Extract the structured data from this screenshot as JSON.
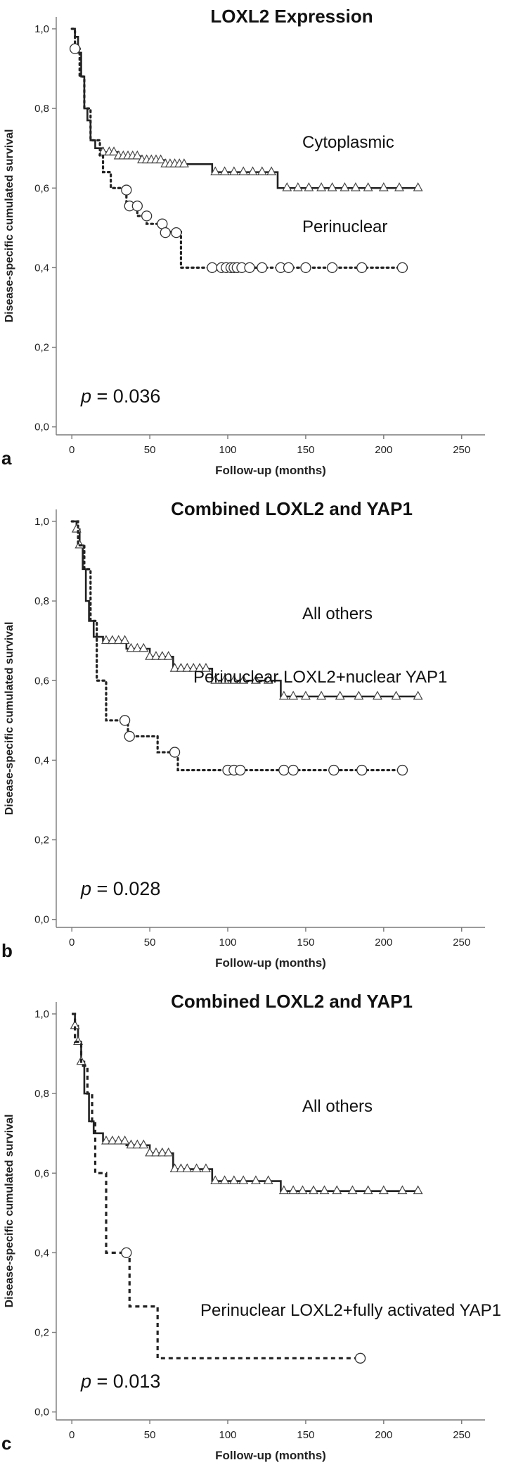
{
  "chart_data": [
    {
      "type": "line",
      "panel_label": "a",
      "title": "LOXL2 Expression",
      "xlabel": "Follow-up (months)",
      "ylabel": "Disease-specific cumulated survival",
      "xlim": [
        -10,
        265
      ],
      "ylim": [
        -0.02,
        1.03
      ],
      "xticks": [
        0,
        50,
        100,
        150,
        200,
        250
      ],
      "xtick_labels": [
        "0",
        "50",
        "100",
        "150",
        "200",
        "250"
      ],
      "yticks": [
        0,
        0.2,
        0.4,
        0.6,
        0.8,
        1.0
      ],
      "ytick_labels": [
        "0,0",
        "0,2",
        "0,4",
        "0,6",
        "0,8",
        "1,0"
      ],
      "annotation": "p = 0.036",
      "series": [
        {
          "name": "Cytoplasmic",
          "label_text": "Cytoplasmic",
          "line_style": "solid",
          "marker": "triangle",
          "steps": [
            [
              0,
              1.0
            ],
            [
              2,
              0.98
            ],
            [
              4,
              0.94
            ],
            [
              6,
              0.88
            ],
            [
              8,
              0.8
            ],
            [
              10,
              0.77
            ],
            [
              12,
              0.72
            ],
            [
              15,
              0.7
            ],
            [
              20,
              0.69
            ],
            [
              30,
              0.68
            ],
            [
              45,
              0.67
            ],
            [
              60,
              0.66
            ],
            [
              90,
              0.64
            ],
            [
              132,
              0.6
            ],
            [
              222,
              0.6
            ]
          ],
          "censored": [
            20,
            24,
            27,
            30,
            33,
            36,
            39,
            42,
            45,
            48,
            51,
            54,
            57,
            60,
            63,
            66,
            69,
            72,
            92,
            98,
            104,
            110,
            116,
            122,
            128,
            138,
            145,
            152,
            160,
            167,
            175,
            182,
            190,
            200,
            210,
            222
          ]
        },
        {
          "name": "Perinuclear",
          "label_text": "Perinuclear",
          "line_style": "dotted",
          "marker": "circle",
          "steps": [
            [
              0,
              1.0
            ],
            [
              2,
              0.95
            ],
            [
              5,
              0.88
            ],
            [
              8,
              0.8
            ],
            [
              12,
              0.72
            ],
            [
              18,
              0.68
            ],
            [
              20,
              0.64
            ],
            [
              25,
              0.6
            ],
            [
              35,
              0.56
            ],
            [
              42,
              0.53
            ],
            [
              48,
              0.51
            ],
            [
              60,
              0.49
            ],
            [
              70,
              0.4
            ],
            [
              212,
              0.4
            ]
          ],
          "censored": [
            [
              2,
              0.95
            ],
            [
              35,
              0.595
            ],
            [
              37,
              0.555
            ],
            [
              42,
              0.555
            ],
            [
              48,
              0.53
            ],
            [
              58,
              0.51
            ],
            [
              60,
              0.488
            ],
            [
              67,
              0.488
            ],
            [
              90,
              0.4
            ],
            [
              96,
              0.4
            ],
            [
              99,
              0.4
            ],
            [
              102,
              0.4
            ],
            [
              104,
              0.4
            ],
            [
              106,
              0.4
            ],
            [
              109,
              0.4
            ],
            [
              114,
              0.4
            ],
            [
              122,
              0.4
            ],
            [
              134,
              0.4
            ],
            [
              139,
              0.4
            ],
            [
              150,
              0.4
            ],
            [
              167,
              0.4
            ],
            [
              186,
              0.4
            ],
            [
              212,
              0.4
            ]
          ]
        }
      ],
      "label_positions": [
        "Cytoplasmic",
        "Perinuclear"
      ]
    },
    {
      "type": "line",
      "panel_label": "b",
      "title": "Combined LOXL2 and YAP1",
      "xlabel": "Follow-up (months)",
      "ylabel": "Disease-specific cumulated survival",
      "xlim": [
        -10,
        265
      ],
      "ylim": [
        -0.02,
        1.03
      ],
      "xticks": [
        0,
        50,
        100,
        150,
        200,
        250
      ],
      "xtick_labels": [
        "0",
        "50",
        "100",
        "150",
        "200",
        "250"
      ],
      "yticks": [
        0,
        0.2,
        0.4,
        0.6,
        0.8,
        1.0
      ],
      "ytick_labels": [
        "0,0",
        "0,2",
        "0,4",
        "0,6",
        "0,8",
        "1,0"
      ],
      "annotation": "p = 0.028",
      "series": [
        {
          "name": "All others",
          "label_text": "All others",
          "line_style": "solid",
          "marker": "triangle",
          "steps": [
            [
              0,
              1.0
            ],
            [
              3,
              0.98
            ],
            [
              5,
              0.94
            ],
            [
              7,
              0.88
            ],
            [
              9,
              0.8
            ],
            [
              11,
              0.75
            ],
            [
              14,
              0.71
            ],
            [
              20,
              0.7
            ],
            [
              35,
              0.68
            ],
            [
              50,
              0.66
            ],
            [
              65,
              0.63
            ],
            [
              90,
              0.6
            ],
            [
              134,
              0.56
            ],
            [
              222,
              0.56
            ]
          ],
          "censored": [
            3,
            5,
            22,
            26,
            30,
            34,
            38,
            42,
            46,
            50,
            54,
            58,
            62,
            66,
            70,
            74,
            78,
            82,
            86,
            92,
            98,
            104,
            110,
            118,
            126,
            136,
            142,
            150,
            160,
            172,
            184,
            196,
            208,
            222
          ]
        },
        {
          "name": "Perinuclear LOXL2+nuclear YAP1",
          "label_text": "Perinuclear LOXL2+nuclear YAP1",
          "line_style": "dotted",
          "marker": "circle",
          "steps": [
            [
              0,
              1.0
            ],
            [
              4,
              0.94
            ],
            [
              8,
              0.88
            ],
            [
              12,
              0.75
            ],
            [
              16,
              0.6
            ],
            [
              22,
              0.5
            ],
            [
              36,
              0.46
            ],
            [
              55,
              0.42
            ],
            [
              68,
              0.375
            ],
            [
              212,
              0.375
            ]
          ],
          "censored": [
            [
              34,
              0.5
            ],
            [
              37,
              0.46
            ],
            [
              66,
              0.42
            ],
            [
              100,
              0.375
            ],
            [
              104,
              0.375
            ],
            [
              108,
              0.375
            ],
            [
              136,
              0.375
            ],
            [
              142,
              0.375
            ],
            [
              168,
              0.375
            ],
            [
              186,
              0.375
            ],
            [
              212,
              0.375
            ]
          ]
        }
      ],
      "label_positions": [
        "All others",
        "Perinuclear LOXL2+nuclear YAP1"
      ]
    },
    {
      "type": "line",
      "panel_label": "c",
      "title": "Combined LOXL2 and YAP1",
      "xlabel": "Follow-up (months)",
      "ylabel": "Disease-specific cumulated survival",
      "xlim": [
        -10,
        265
      ],
      "ylim": [
        -0.02,
        1.03
      ],
      "xticks": [
        0,
        50,
        100,
        150,
        200,
        250
      ],
      "xtick_labels": [
        "0",
        "50",
        "100",
        "150",
        "200",
        "250"
      ],
      "yticks": [
        0,
        0.2,
        0.4,
        0.6,
        0.8,
        1.0
      ],
      "ytick_labels": [
        "0,0",
        "0,2",
        "0,4",
        "0,6",
        "0,8",
        "1,0"
      ],
      "annotation": "p = 0.013",
      "series": [
        {
          "name": "All others",
          "label_text": "All others",
          "line_style": "solid",
          "marker": "triangle",
          "steps": [
            [
              0,
              1.0
            ],
            [
              2,
              0.97
            ],
            [
              4,
              0.93
            ],
            [
              6,
              0.88
            ],
            [
              8,
              0.8
            ],
            [
              11,
              0.73
            ],
            [
              14,
              0.7
            ],
            [
              20,
              0.68
            ],
            [
              35,
              0.67
            ],
            [
              50,
              0.65
            ],
            [
              65,
              0.61
            ],
            [
              90,
              0.58
            ],
            [
              134,
              0.555
            ],
            [
              222,
              0.555
            ]
          ],
          "censored": [
            2,
            4,
            6,
            22,
            26,
            30,
            34,
            38,
            42,
            46,
            50,
            54,
            58,
            62,
            66,
            70,
            74,
            80,
            86,
            92,
            98,
            104,
            110,
            118,
            126,
            136,
            142,
            148,
            155,
            162,
            170,
            180,
            190,
            200,
            212,
            222
          ]
        },
        {
          "name": "Perinuclear LOXL2+fully activated YAP1",
          "label_text": "Perinuclear LOXL2+fully activated YAP1",
          "line_style": "dashed",
          "marker": "circle",
          "steps": [
            [
              0,
              1.0
            ],
            [
              2,
              0.93
            ],
            [
              6,
              0.87
            ],
            [
              10,
              0.8
            ],
            [
              13,
              0.73
            ],
            [
              15,
              0.6
            ],
            [
              22,
              0.4
            ],
            [
              37,
              0.265
            ],
            [
              55,
              0.135
            ],
            [
              185,
              0.135
            ]
          ],
          "censored": [
            [
              35,
              0.4
            ],
            [
              185,
              0.135
            ]
          ]
        }
      ],
      "label_positions": [
        "All others",
        "Perinuclear LOXL2+fully activated YAP1"
      ]
    }
  ]
}
